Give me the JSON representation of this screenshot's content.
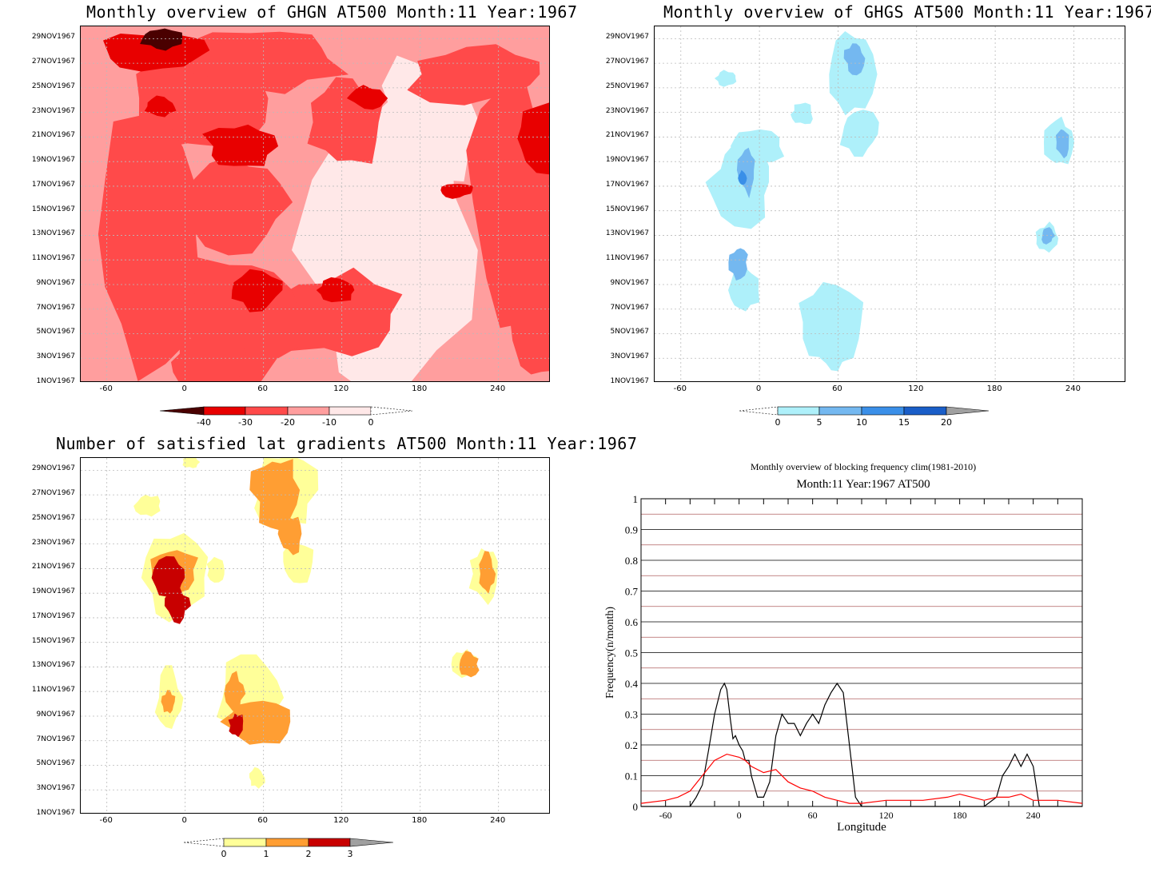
{
  "panels": {
    "ghgn": {
      "title": "Monthly overview of GHGN AT500 Month:11 Year:1967",
      "colorbar": {
        "labels": [
          "-40",
          "-30",
          "-20",
          "-10",
          "0"
        ],
        "colors": [
          "#4a0000",
          "#e80000",
          "#ff4a4a",
          "#ff9e9e",
          "#ffe8e8"
        ]
      }
    },
    "ghgs": {
      "title": "Monthly overview of GHGS AT500 Month:11 Year:1967",
      "colorbar": {
        "labels": [
          "0",
          "5",
          "10",
          "15",
          "20"
        ],
        "colors": [
          "#aef0fa",
          "#74b8f0",
          "#3a8fe8",
          "#1a5ec8",
          "#a0a0a0"
        ]
      }
    },
    "grad": {
      "title": "Number of satisfied lat gradients AT500 Month:11 Year:1967",
      "colorbar": {
        "labels": [
          "0",
          "1",
          "2",
          "3"
        ],
        "colors": [
          "#ffff99",
          "#ff9e33",
          "#c80000",
          "#a0a0a0"
        ]
      }
    },
    "freq": {
      "title": "Monthly overview of blocking frequency clim(1981-2010)",
      "subtitle": "Month:11 Year:1967  AT500",
      "ylabel": "Frequency(n/month)",
      "xlabel": "Longitude"
    }
  },
  "axes": {
    "date_ticks": [
      "1NOV1967",
      "3NOV1967",
      "5NOV1967",
      "7NOV1967",
      "9NOV1967",
      "11NOV1967",
      "13NOV1967",
      "15NOV1967",
      "17NOV1967",
      "19NOV1967",
      "21NOV1967",
      "23NOV1967",
      "25NOV1967",
      "27NOV1967",
      "29NOV1967"
    ],
    "lon_ticks": [
      "-60",
      "0",
      "60",
      "120",
      "180",
      "240"
    ],
    "freq_ticks": [
      "0",
      "0.1",
      "0.2",
      "0.3",
      "0.4",
      "0.5",
      "0.6",
      "0.7",
      "0.8",
      "0.9",
      "1"
    ]
  },
  "chart_data": [
    {
      "type": "heatmap",
      "title": "Monthly overview of GHGN AT500 Month:11 Year:1967",
      "xlim": [
        -80,
        280
      ],
      "ylim": [
        "1NOV1967",
        "30NOV1967"
      ],
      "levels": [
        -40,
        -30,
        -20,
        -10,
        0
      ]
    },
    {
      "type": "heatmap",
      "title": "Monthly overview of GHGS AT500 Month:11 Year:1967",
      "xlim": [
        -80,
        280
      ],
      "ylim": [
        "1NOV1967",
        "30NOV1967"
      ],
      "levels": [
        0,
        5,
        10,
        15,
        20
      ]
    },
    {
      "type": "heatmap",
      "title": "Number of satisfied lat gradients AT500 Month:11 Year:1967",
      "xlim": [
        -80,
        280
      ],
      "ylim": [
        "1NOV1967",
        "30NOV1967"
      ],
      "levels": [
        0,
        1,
        2,
        3
      ]
    },
    {
      "type": "line",
      "title": "Monthly overview of blocking frequency clim(1981-2010)",
      "subtitle": "Month:11 Year:1967  AT500",
      "xlabel": "Longitude",
      "ylabel": "Frequency(n/month)",
      "xlim": [
        -80,
        280
      ],
      "ylim": [
        0,
        1
      ],
      "series": [
        {
          "color": "#000000",
          "x": [
            -80,
            -40,
            -35,
            -30,
            -25,
            -20,
            -15,
            -12,
            -10,
            -7,
            -5,
            -3,
            0,
            3,
            5,
            8,
            10,
            15,
            20,
            25,
            30,
            35,
            40,
            45,
            50,
            55,
            60,
            65,
            70,
            75,
            80,
            85,
            90,
            95,
            100,
            105,
            110,
            120,
            150,
            180,
            200,
            210,
            215,
            220,
            225,
            230,
            235,
            240,
            245,
            280
          ],
          "values": [
            0,
            0,
            0.03,
            0.07,
            0.18,
            0.3,
            0.38,
            0.4,
            0.38,
            0.28,
            0.22,
            0.23,
            0.2,
            0.18,
            0.15,
            0.15,
            0.1,
            0.03,
            0.03,
            0.08,
            0.23,
            0.3,
            0.27,
            0.27,
            0.23,
            0.27,
            0.3,
            0.27,
            0.33,
            0.37,
            0.4,
            0.37,
            0.2,
            0.03,
            0,
            0,
            0,
            0,
            0,
            0,
            0,
            0.03,
            0.1,
            0.13,
            0.17,
            0.13,
            0.17,
            0.13,
            0,
            0
          ]
        },
        {
          "color": "#ff0000",
          "x": [
            -80,
            -60,
            -50,
            -40,
            -30,
            -20,
            -10,
            0,
            5,
            10,
            20,
            30,
            40,
            50,
            60,
            70,
            80,
            90,
            100,
            120,
            150,
            170,
            180,
            190,
            200,
            210,
            220,
            230,
            240,
            260,
            280
          ],
          "values": [
            0.01,
            0.02,
            0.03,
            0.05,
            0.1,
            0.15,
            0.17,
            0.16,
            0.15,
            0.13,
            0.11,
            0.12,
            0.08,
            0.06,
            0.05,
            0.03,
            0.02,
            0.01,
            0.01,
            0.02,
            0.02,
            0.03,
            0.04,
            0.03,
            0.02,
            0.03,
            0.03,
            0.04,
            0.02,
            0.02,
            0.01
          ]
        }
      ]
    }
  ]
}
